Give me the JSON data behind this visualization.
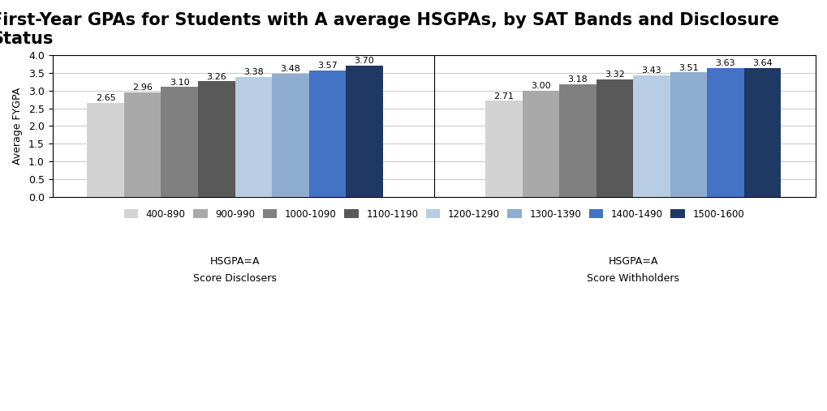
{
  "title": "First-Year GPAs for Students with A average HSGPAs, by SAT Bands and Disclosure\nStatus",
  "ylabel": "Average FYGPA",
  "groups": [
    "Score Disclosers",
    "Score Withholders"
  ],
  "group_labels": [
    "HSGPA=A",
    "HSGPA=A"
  ],
  "categories": [
    "400-890",
    "900-990",
    "1000-1090",
    "1100-1190",
    "1200-1290",
    "1300-1390",
    "1400-1490",
    "1500-1600"
  ],
  "colors": [
    "#d3d3d3",
    "#a9a9a9",
    "#808080",
    "#595959",
    "#b8cce4",
    "#8eadd0",
    "#4472c4",
    "#1f3864"
  ],
  "disclosers_values": [
    2.65,
    2.96,
    3.1,
    3.26,
    3.38,
    3.48,
    3.57,
    3.7
  ],
  "withholders_values": [
    2.71,
    3.0,
    3.18,
    3.32,
    3.43,
    3.51,
    3.63,
    3.64
  ],
  "ylim": [
    0.0,
    4.0
  ],
  "yticks": [
    0.0,
    0.5,
    1.0,
    1.5,
    2.0,
    2.5,
    3.0,
    3.5,
    4.0
  ],
  "title_fontsize": 15,
  "label_fontsize": 9,
  "tick_fontsize": 9,
  "legend_fontsize": 8.5,
  "background_color": "#ffffff",
  "plot_bg_color": "#ffffff"
}
